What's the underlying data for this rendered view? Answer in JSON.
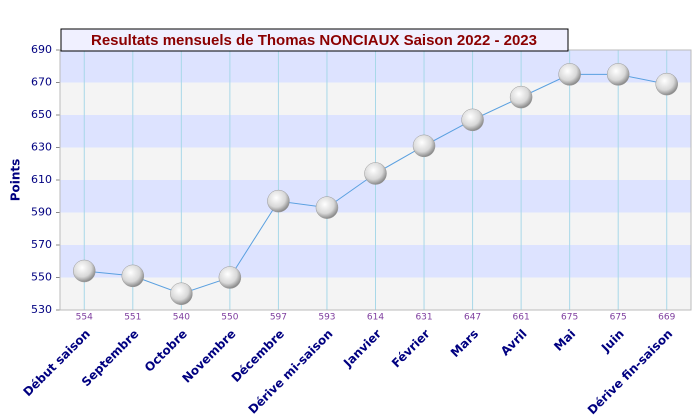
{
  "chart_data": {
    "type": "line",
    "title": "Resultats mensuels de Thomas NONCIAUX Saison 2022 - 2023",
    "y_label": "Points",
    "categories": [
      "Début saison",
      "Septembre",
      "Octobre",
      "Novembre",
      "Décembre",
      "Dérive mi-saison",
      "Janvier",
      "Février",
      "Mars",
      "Avril",
      "Mai",
      "Juin",
      "Dérive fin-saison"
    ],
    "values": [
      554,
      551,
      540,
      550,
      597,
      593,
      614,
      631,
      647,
      661,
      675,
      675,
      669
    ],
    "color": "#5aa0e0",
    "ylim": [
      530,
      690
    ],
    "yticks": [
      530,
      550,
      570,
      590,
      610,
      630,
      650,
      670,
      690
    ],
    "grid": true,
    "band_colors": [
      "#f4f4f4",
      "#dde3ff"
    ]
  }
}
